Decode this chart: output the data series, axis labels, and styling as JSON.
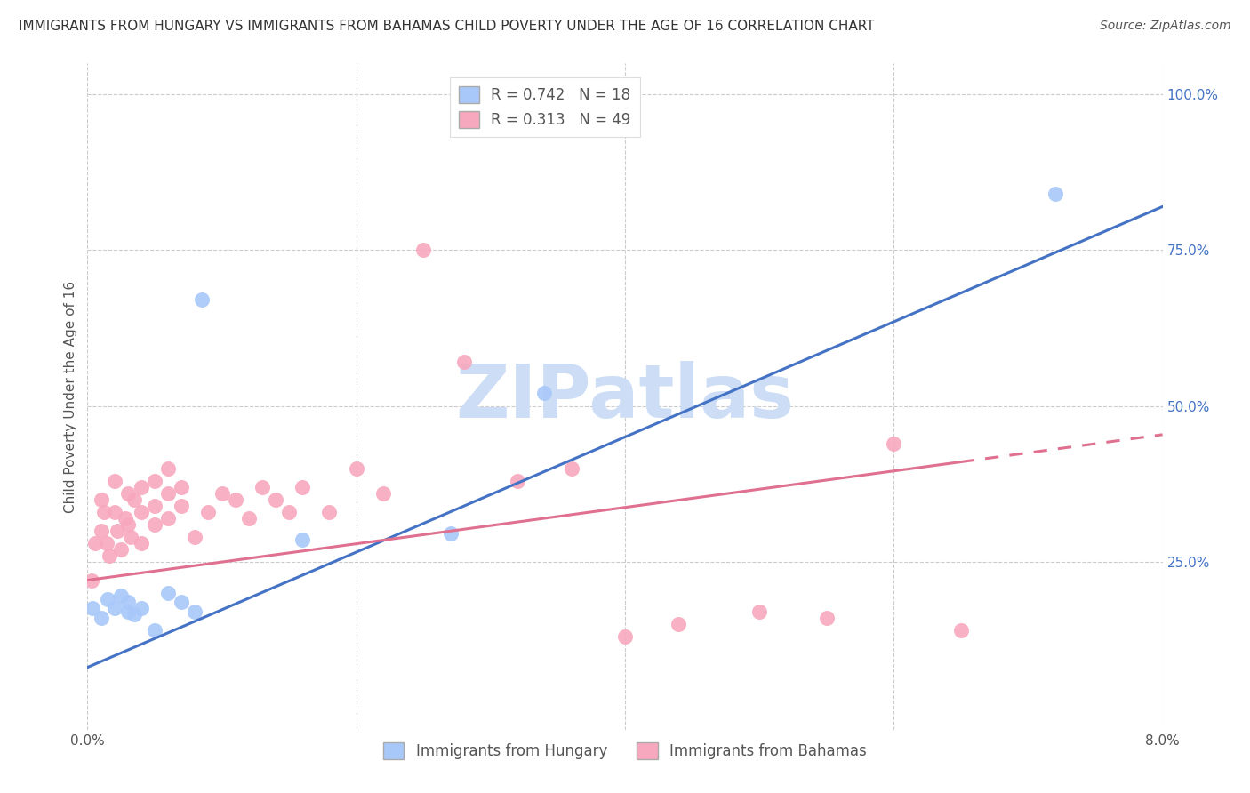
{
  "title": "IMMIGRANTS FROM HUNGARY VS IMMIGRANTS FROM BAHAMAS CHILD POVERTY UNDER THE AGE OF 16 CORRELATION CHART",
  "source": "Source: ZipAtlas.com",
  "ylabel": "Child Poverty Under the Age of 16",
  "xlim": [
    0.0,
    0.08
  ],
  "ylim": [
    -0.02,
    1.05
  ],
  "hungary_R": 0.742,
  "hungary_N": 18,
  "bahamas_R": 0.313,
  "bahamas_N": 49,
  "hungary_color": "#a8c8fa",
  "bahamas_color": "#f8a8be",
  "hungary_line_color": "#4472c4",
  "bahamas_line_color": "#e07090",
  "hungary_x": [
    0.0004,
    0.001,
    0.0015,
    0.002,
    0.0025,
    0.003,
    0.003,
    0.0035,
    0.004,
    0.005,
    0.006,
    0.007,
    0.008,
    0.0085,
    0.016,
    0.027,
    0.034,
    0.072
  ],
  "hungary_y": [
    0.175,
    0.16,
    0.19,
    0.175,
    0.195,
    0.17,
    0.185,
    0.165,
    0.175,
    0.14,
    0.2,
    0.185,
    0.17,
    0.67,
    0.285,
    0.295,
    0.52,
    0.84
  ],
  "bahamas_x": [
    0.0003,
    0.0006,
    0.001,
    0.001,
    0.0012,
    0.0014,
    0.0016,
    0.002,
    0.002,
    0.0022,
    0.0025,
    0.0028,
    0.003,
    0.003,
    0.0032,
    0.0035,
    0.004,
    0.004,
    0.004,
    0.005,
    0.005,
    0.005,
    0.006,
    0.006,
    0.006,
    0.007,
    0.007,
    0.008,
    0.009,
    0.01,
    0.011,
    0.012,
    0.013,
    0.014,
    0.015,
    0.016,
    0.018,
    0.02,
    0.022,
    0.025,
    0.028,
    0.032,
    0.036,
    0.04,
    0.044,
    0.05,
    0.055,
    0.06,
    0.065
  ],
  "bahamas_y": [
    0.22,
    0.28,
    0.35,
    0.3,
    0.33,
    0.28,
    0.26,
    0.38,
    0.33,
    0.3,
    0.27,
    0.32,
    0.36,
    0.31,
    0.29,
    0.35,
    0.37,
    0.33,
    0.28,
    0.38,
    0.34,
    0.31,
    0.4,
    0.36,
    0.32,
    0.37,
    0.34,
    0.29,
    0.33,
    0.36,
    0.35,
    0.32,
    0.37,
    0.35,
    0.33,
    0.37,
    0.33,
    0.4,
    0.36,
    0.75,
    0.57,
    0.38,
    0.4,
    0.13,
    0.15,
    0.17,
    0.16,
    0.44,
    0.14
  ],
  "watermark": "ZIPatlas",
  "watermark_color": "#ccddf5",
  "legend_hungary_label": "Immigrants from Hungary",
  "legend_bahamas_label": "Immigrants from Bahamas",
  "hungary_line_x0": 0.0,
  "hungary_line_y0": 0.08,
  "hungary_line_x1": 0.08,
  "hungary_line_y1": 0.82,
  "bahamas_line_x0": 0.0,
  "bahamas_line_y0": 0.22,
  "bahamas_line_x1": 0.065,
  "bahamas_line_y1": 0.41,
  "title_fontsize": 11,
  "axis_label_fontsize": 11,
  "tick_fontsize": 11,
  "legend_fontsize": 12,
  "source_fontsize": 10
}
